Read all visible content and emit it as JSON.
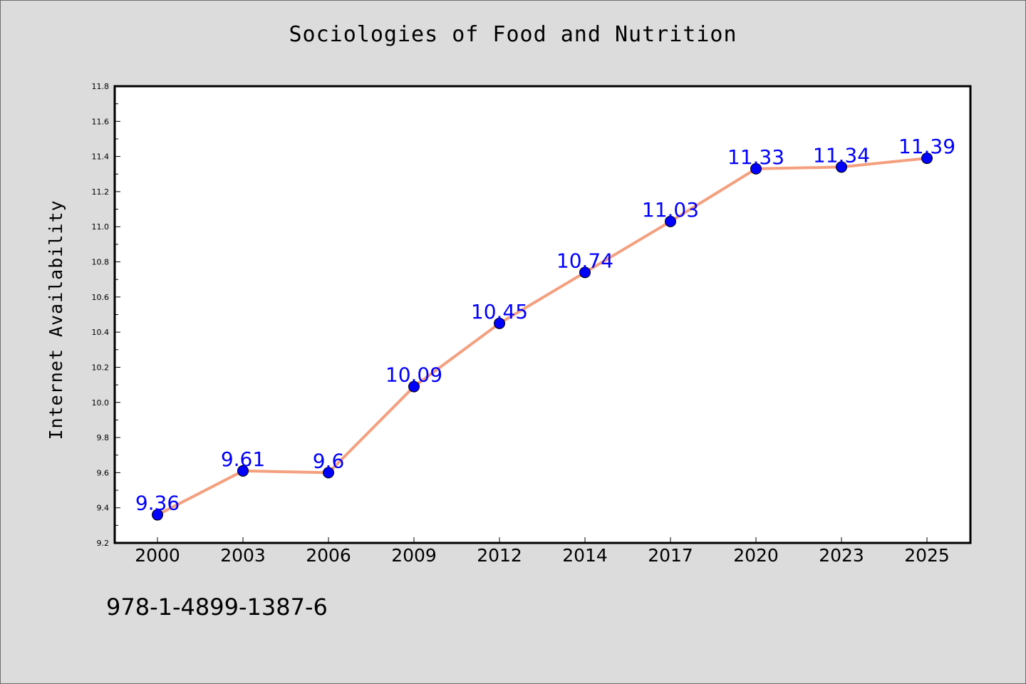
{
  "page": {
    "isbn": "978-1-4899-1387-6"
  },
  "chart_data": {
    "type": "line",
    "title": "Sociologies of Food and Nutrition",
    "xlabel": "",
    "ylabel": "Internet Availability",
    "categories": [
      "2000",
      "2003",
      "2006",
      "2009",
      "2012",
      "2014",
      "2017",
      "2020",
      "2023",
      "2025"
    ],
    "series": [
      {
        "values": [
          9.36,
          9.61,
          9.6,
          10.09,
          10.45,
          10.74,
          11.03,
          11.33,
          11.34,
          11.39
        ],
        "data_labels": [
          "9.36",
          "9.61",
          "9.6",
          "10.09",
          "10.45",
          "10.74",
          "11.03",
          "11.33",
          "11.34",
          "11.39"
        ],
        "line_color": "#f4a07f",
        "marker_color": "#0000ff"
      }
    ],
    "ylim": [
      9.2,
      11.8
    ],
    "yticks": [
      "9.2",
      "9.4",
      "9.6",
      "9.8",
      "10.0",
      "10.2",
      "10.4",
      "10.6",
      "10.8",
      "11.0",
      "11.2",
      "11.4",
      "11.6",
      "11.8"
    ],
    "grid": false,
    "legend": "none",
    "colors": {
      "background": "#dcdcdc",
      "plot_background": "#ffffff",
      "label_color": "#0000ff"
    }
  }
}
